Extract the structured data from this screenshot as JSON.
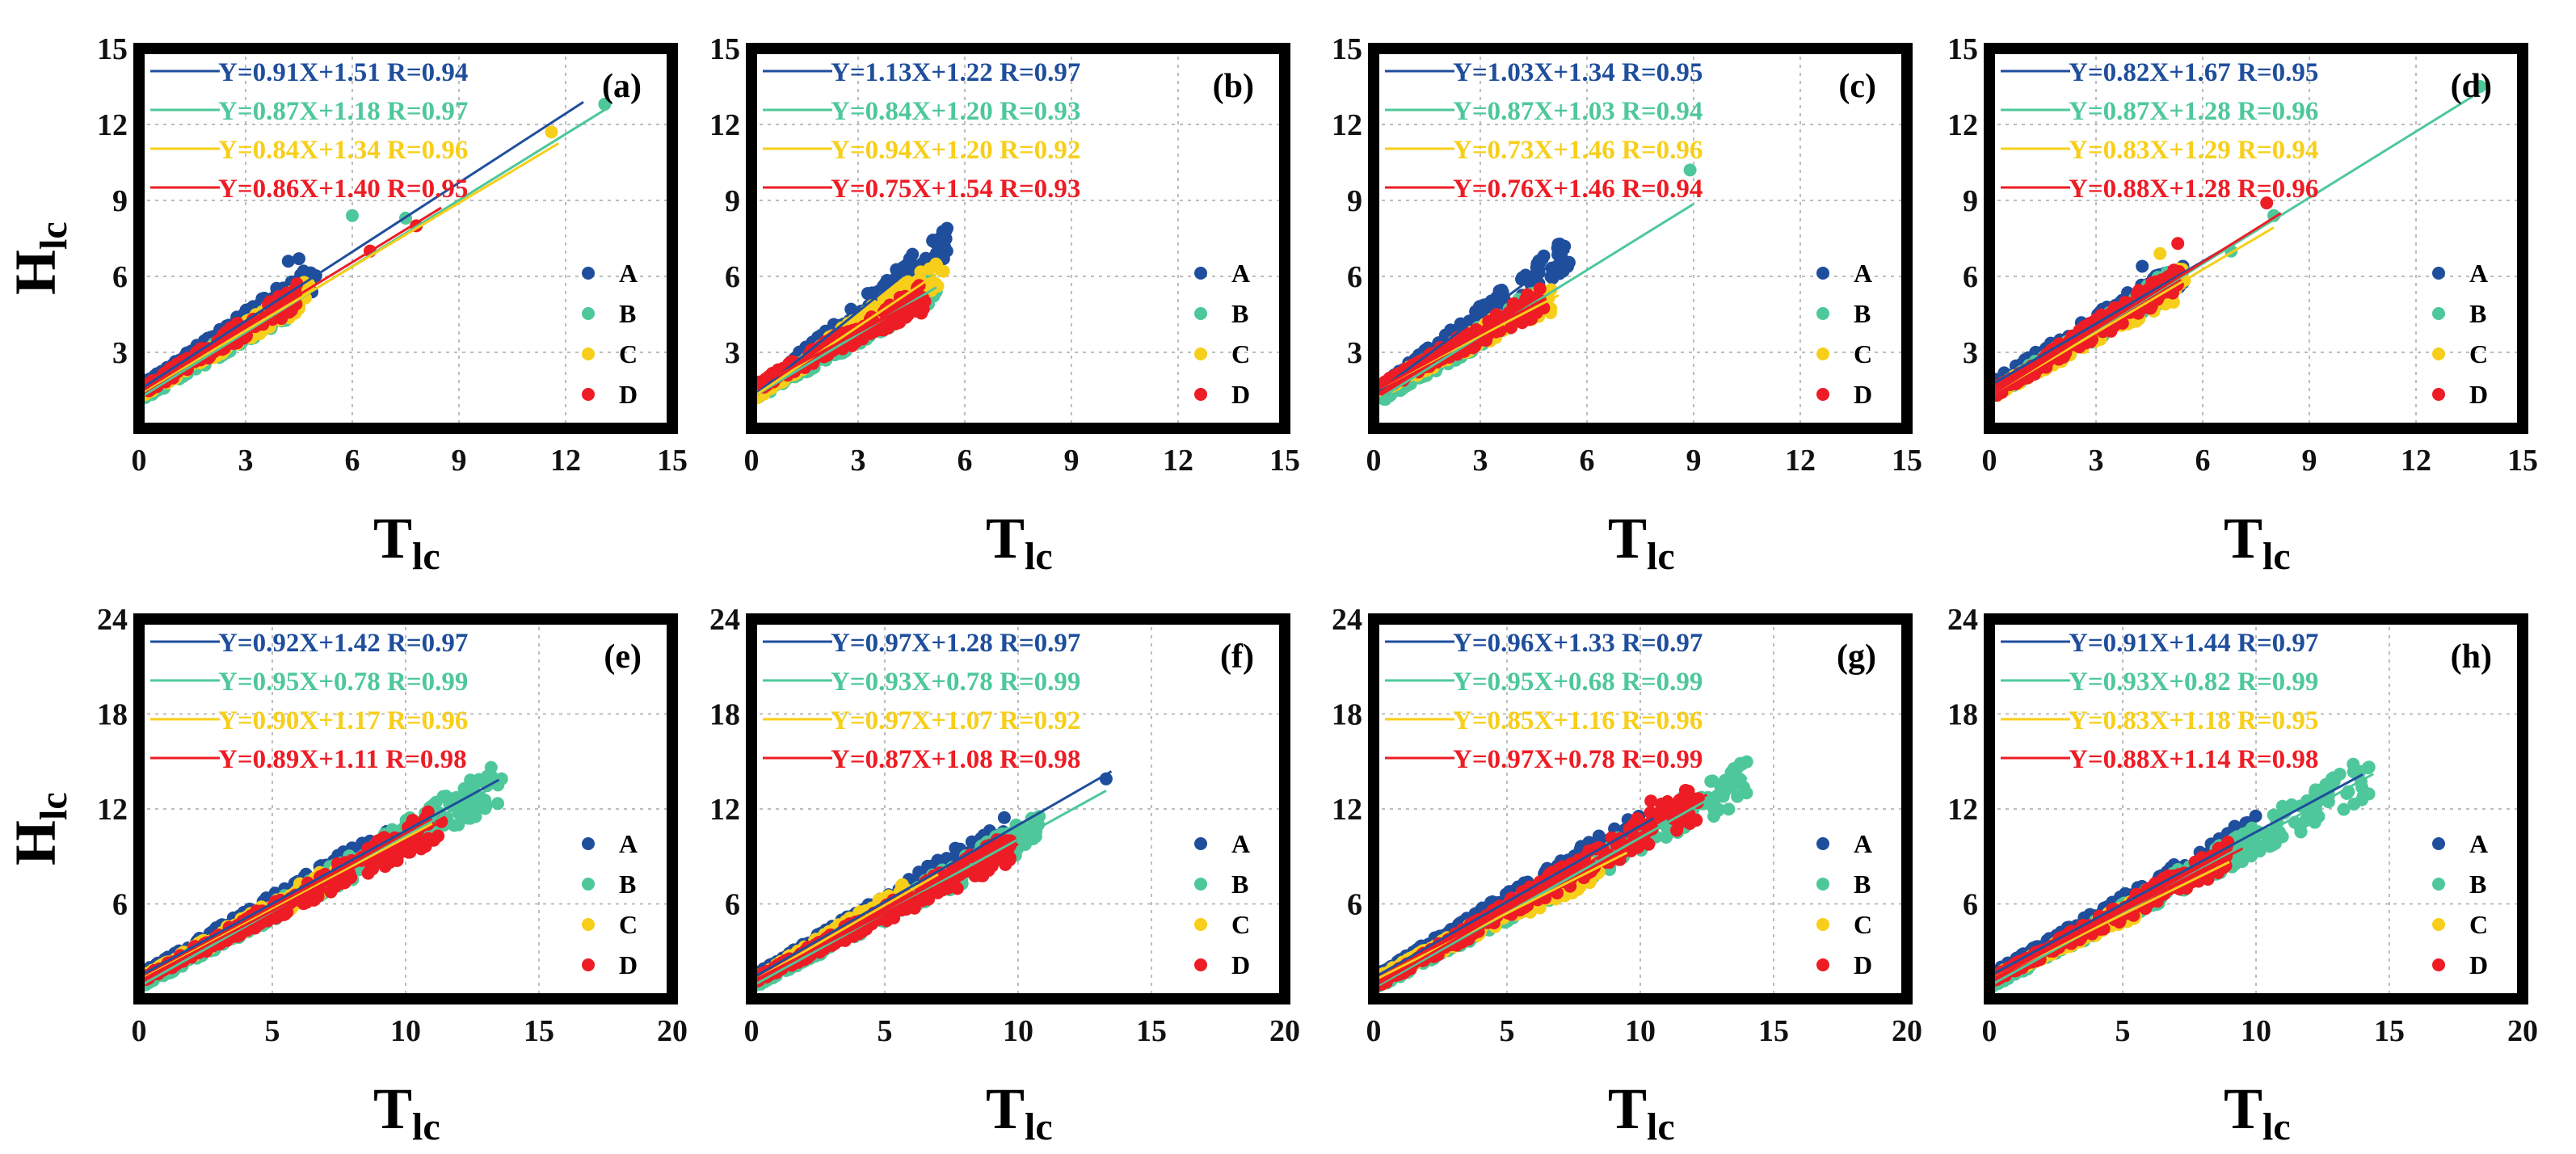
{
  "figure": {
    "x_label_main": "T",
    "x_label_sub": "lc",
    "y_label_main": "H",
    "y_label_sub": "lc"
  },
  "colors": {
    "A": "#1f4e9c",
    "B": "#4ec89a",
    "C": "#f7cf1a",
    "D": "#ee1c25"
  },
  "chart_data": [
    {
      "type": "scatter",
      "label": "(a)",
      "xlim": [
        0,
        15
      ],
      "ylim": [
        0,
        15
      ],
      "xticks": [
        "0",
        "3",
        "6",
        "9",
        "12",
        "15"
      ],
      "yticks": [
        "3",
        "6",
        "9",
        "12",
        "15"
      ],
      "show_y_label": true,
      "xlabel": "Tlc",
      "ylabel": "Hlc",
      "legend": [
        "A",
        "B",
        "C",
        "D"
      ],
      "series": [
        {
          "name": "A",
          "equation": "Y=0.91X+1.51 R=0.94",
          "slope": 0.91,
          "intercept": 1.51,
          "line_x": [
            0,
            12.5
          ],
          "point_xmax": 5,
          "extras": [
            [
              4.2,
              6.6
            ],
            [
              4.5,
              6.7
            ]
          ]
        },
        {
          "name": "B",
          "equation": "Y=0.87X+1.18 R=0.97",
          "slope": 0.87,
          "intercept": 1.18,
          "line_x": [
            0,
            13.2
          ],
          "point_xmax": 4.5,
          "extras": [
            [
              6.0,
              8.4
            ],
            [
              7.5,
              8.3
            ],
            [
              13.1,
              12.8
            ]
          ]
        },
        {
          "name": "C",
          "equation": "Y=0.84X+1.34 R=0.96",
          "slope": 0.84,
          "intercept": 1.34,
          "line_x": [
            0,
            11.8
          ],
          "point_xmax": 4.8,
          "extras": [
            [
              11.6,
              11.7
            ]
          ]
        },
        {
          "name": "D",
          "equation": "Y=0.86X+1.40 R=0.95",
          "slope": 0.86,
          "intercept": 1.4,
          "line_x": [
            0,
            8.5
          ],
          "point_xmax": 4.6,
          "extras": [
            [
              6.5,
              7.0
            ],
            [
              7.8,
              8.0
            ]
          ]
        }
      ]
    },
    {
      "type": "scatter",
      "label": "(b)",
      "xlim": [
        0,
        15
      ],
      "ylim": [
        0,
        15
      ],
      "xticks": [
        "0",
        "3",
        "6",
        "9",
        "12",
        "15"
      ],
      "yticks": [
        "3",
        "6",
        "9",
        "12",
        "15"
      ],
      "show_y_label": false,
      "xlabel": "Tlc",
      "ylabel": "",
      "legend": [
        "A",
        "B",
        "C",
        "D"
      ],
      "series": [
        {
          "name": "A",
          "equation": "Y=1.13X+1.22 R=0.97",
          "slope": 1.13,
          "intercept": 1.22,
          "line_x": [
            0,
            5.6
          ],
          "point_xmax": 5.5,
          "extras": [
            [
              5.5,
              7.9
            ]
          ]
        },
        {
          "name": "B",
          "equation": "Y=0.84X+1.20 R=0.93",
          "slope": 0.84,
          "intercept": 1.2,
          "line_x": [
            0,
            5.2
          ],
          "point_xmax": 5.2,
          "extras": [
            [
              5.2,
              5.4
            ]
          ]
        },
        {
          "name": "C",
          "equation": "Y=0.94X+1.20 R=0.92",
          "slope": 0.94,
          "intercept": 1.2,
          "line_x": [
            0,
            5.3
          ],
          "point_xmax": 5.3,
          "extras": [
            [
              5.4,
              6.2
            ]
          ]
        },
        {
          "name": "D",
          "equation": "Y=0.75X+1.54 R=0.93",
          "slope": 0.75,
          "intercept": 1.54,
          "line_x": [
            0,
            4.9
          ],
          "point_xmax": 4.9,
          "extras": []
        }
      ]
    },
    {
      "type": "scatter",
      "label": "(c)",
      "xlim": [
        0,
        15
      ],
      "ylim": [
        0,
        15
      ],
      "xticks": [
        "0",
        "3",
        "6",
        "9",
        "12",
        "15"
      ],
      "yticks": [
        "3",
        "6",
        "9",
        "12",
        "15"
      ],
      "show_y_label": false,
      "xlabel": "Tlc",
      "ylabel": "",
      "legend": [
        "A",
        "B",
        "C",
        "D"
      ],
      "series": [
        {
          "name": "A",
          "equation": "Y=1.03X+1.34 R=0.95",
          "slope": 1.03,
          "intercept": 1.34,
          "line_x": [
            0,
            5.5
          ],
          "point_xmax": 5.5,
          "extras": [
            [
              5.2,
              7.2
            ],
            [
              4.6,
              6.5
            ]
          ]
        },
        {
          "name": "B",
          "equation": "Y=0.87X+1.03 R=0.94",
          "slope": 0.87,
          "intercept": 1.03,
          "line_x": [
            0,
            9.0
          ],
          "point_xmax": 4.8,
          "extras": [
            [
              8.9,
              10.2
            ]
          ]
        },
        {
          "name": "C",
          "equation": "Y=0.73X+1.46 R=0.96",
          "slope": 0.73,
          "intercept": 1.46,
          "line_x": [
            0,
            5.2
          ],
          "point_xmax": 5.0,
          "extras": []
        },
        {
          "name": "D",
          "equation": "Y=0.76X+1.46 R=0.94",
          "slope": 0.76,
          "intercept": 1.46,
          "line_x": [
            0,
            4.8
          ],
          "point_xmax": 4.8,
          "extras": []
        }
      ]
    },
    {
      "type": "scatter",
      "label": "(d)",
      "xlim": [
        0,
        15
      ],
      "ylim": [
        0,
        15
      ],
      "xticks": [
        "0",
        "3",
        "6",
        "9",
        "12",
        "15"
      ],
      "yticks": [
        "3",
        "6",
        "9",
        "12",
        "15"
      ],
      "show_y_label": false,
      "xlabel": "Tlc",
      "ylabel": "",
      "legend": [
        "A",
        "B",
        "C",
        "D"
      ],
      "series": [
        {
          "name": "A",
          "equation": "Y=0.82X+1.67 R=0.95",
          "slope": 0.82,
          "intercept": 1.67,
          "line_x": [
            0,
            7.5
          ],
          "point_xmax": 5.5,
          "extras": [
            [
              4.3,
              6.4
            ]
          ]
        },
        {
          "name": "B",
          "equation": "Y=0.87X+1.28 R=0.96",
          "slope": 0.87,
          "intercept": 1.28,
          "line_x": [
            0,
            13.9
          ],
          "point_xmax": 5.0,
          "extras": [
            [
              6.8,
              7.0
            ],
            [
              8.0,
              8.4
            ],
            [
              13.8,
              13.5
            ]
          ]
        },
        {
          "name": "C",
          "equation": "Y=0.83X+1.29 R=0.94",
          "slope": 0.83,
          "intercept": 1.29,
          "line_x": [
            0,
            8.0
          ],
          "point_xmax": 5.5,
          "extras": [
            [
              4.8,
              6.9
            ]
          ]
        },
        {
          "name": "D",
          "equation": "Y=0.88X+1.28 R=0.96",
          "slope": 0.88,
          "intercept": 1.28,
          "line_x": [
            0,
            8.2
          ],
          "point_xmax": 5.4,
          "extras": [
            [
              5.3,
              7.3
            ],
            [
              7.8,
              8.9
            ]
          ]
        }
      ]
    },
    {
      "type": "scatter",
      "label": "(e)",
      "xlim": [
        0,
        20
      ],
      "ylim": [
        0,
        24
      ],
      "xticks": [
        "0",
        "5",
        "10",
        "15",
        "20"
      ],
      "yticks": [
        "6",
        "12",
        "18",
        "24"
      ],
      "show_y_label": true,
      "xlabel": "Tlc",
      "ylabel": "Hlc",
      "legend": [
        "A",
        "B",
        "C",
        "D"
      ],
      "series": [
        {
          "name": "A",
          "equation": "Y=0.92X+1.42 R=0.97",
          "slope": 0.92,
          "intercept": 1.42,
          "line_x": [
            0,
            13.5
          ],
          "point_xmax": 9.5,
          "extras": [
            [
              13.4,
              13.7
            ]
          ]
        },
        {
          "name": "B",
          "equation": "Y=0.95X+0.78 R=0.99",
          "slope": 0.95,
          "intercept": 0.78,
          "line_x": [
            0,
            13.7
          ],
          "point_xmax": 13.6,
          "extras": [
            [
              13.6,
              13.9
            ]
          ]
        },
        {
          "name": "C",
          "equation": "Y=0.90X+1.17 R=0.96",
          "slope": 0.9,
          "intercept": 1.17,
          "line_x": [
            0,
            11.0
          ],
          "point_xmax": 7.5,
          "extras": []
        },
        {
          "name": "D",
          "equation": "Y=0.89X+1.11 R=0.98",
          "slope": 0.89,
          "intercept": 1.11,
          "line_x": [
            0,
            11.5
          ],
          "point_xmax": 11.4,
          "extras": []
        }
      ]
    },
    {
      "type": "scatter",
      "label": "(f)",
      "xlim": [
        0,
        20
      ],
      "ylim": [
        0,
        24
      ],
      "xticks": [
        "0",
        "5",
        "10",
        "15",
        "20"
      ],
      "yticks": [
        "6",
        "12",
        "18",
        "24"
      ],
      "show_y_label": false,
      "xlabel": "Tlc",
      "ylabel": "",
      "legend": [
        "A",
        "B",
        "C",
        "D"
      ],
      "series": [
        {
          "name": "A",
          "equation": "Y=0.97X+1.28 R=0.97",
          "slope": 0.97,
          "intercept": 1.28,
          "line_x": [
            0,
            13.5
          ],
          "point_xmax": 9.5,
          "extras": [
            [
              13.3,
              13.9
            ]
          ]
        },
        {
          "name": "B",
          "equation": "Y=0.93X+0.78 R=0.99",
          "slope": 0.93,
          "intercept": 0.78,
          "line_x": [
            0,
            13.3
          ],
          "point_xmax": 10.8,
          "extras": []
        },
        {
          "name": "C",
          "equation": "Y=0.97X+1.07 R=0.92",
          "slope": 0.97,
          "intercept": 1.07,
          "line_x": [
            0,
            7.0
          ],
          "point_xmax": 5.8,
          "extras": []
        },
        {
          "name": "D",
          "equation": "Y=0.87X+1.08 R=0.98",
          "slope": 0.87,
          "intercept": 1.08,
          "line_x": [
            0,
            10.0
          ],
          "point_xmax": 9.8,
          "extras": []
        }
      ]
    },
    {
      "type": "scatter",
      "label": "(g)",
      "xlim": [
        0,
        20
      ],
      "ylim": [
        0,
        24
      ],
      "xticks": [
        "0",
        "5",
        "10",
        "15",
        "20"
      ],
      "yticks": [
        "6",
        "12",
        "18",
        "24"
      ],
      "show_y_label": false,
      "xlabel": "Tlc",
      "ylabel": "",
      "legend": [
        "A",
        "B",
        "C",
        "D"
      ],
      "series": [
        {
          "name": "A",
          "equation": "Y=0.96X+1.33 R=0.97",
          "slope": 0.96,
          "intercept": 1.33,
          "line_x": [
            0,
            10.5
          ],
          "point_xmax": 10.0,
          "extras": []
        },
        {
          "name": "B",
          "equation": "Y=0.95X+0.68 R=0.99",
          "slope": 0.95,
          "intercept": 0.68,
          "line_x": [
            0,
            14.0
          ],
          "point_xmax": 14.0,
          "extras": []
        },
        {
          "name": "C",
          "equation": "Y=0.85X+1.16 R=0.96",
          "slope": 0.85,
          "intercept": 1.16,
          "line_x": [
            0,
            9.5
          ],
          "point_xmax": 8.5,
          "extras": []
        },
        {
          "name": "D",
          "equation": "Y=0.97X+0.78 R=0.99",
          "slope": 0.97,
          "intercept": 0.78,
          "line_x": [
            0,
            12.5
          ],
          "point_xmax": 12.2,
          "extras": [
            [
              10.4,
              12.5
            ]
          ]
        }
      ]
    },
    {
      "type": "scatter",
      "label": "(h)",
      "xlim": [
        0,
        20
      ],
      "ylim": [
        0,
        24
      ],
      "xticks": [
        "0",
        "5",
        "10",
        "15",
        "20"
      ],
      "yticks": [
        "6",
        "12",
        "18",
        "24"
      ],
      "show_y_label": false,
      "xlabel": "Tlc",
      "ylabel": "",
      "legend": [
        "A",
        "B",
        "C",
        "D"
      ],
      "series": [
        {
          "name": "A",
          "equation": "Y=0.91X+1.44 R=0.97",
          "slope": 0.91,
          "intercept": 1.44,
          "line_x": [
            0,
            14.0
          ],
          "point_xmax": 10.0,
          "extras": [
            [
              9.2,
              10.9
            ]
          ]
        },
        {
          "name": "B",
          "equation": "Y=0.93X+0.82 R=0.99",
          "slope": 0.93,
          "intercept": 0.82,
          "line_x": [
            0,
            14.4
          ],
          "point_xmax": 14.3,
          "extras": [
            [
              14.2,
              14.6
            ]
          ]
        },
        {
          "name": "C",
          "equation": "Y=0.83X+1.18 R=0.95",
          "slope": 0.83,
          "intercept": 1.18,
          "line_x": [
            0,
            9.0
          ],
          "point_xmax": 5.5,
          "extras": []
        },
        {
          "name": "D",
          "equation": "Y=0.88X+1.14 R=0.98",
          "slope": 0.88,
          "intercept": 1.14,
          "line_x": [
            0,
            9.5
          ],
          "point_xmax": 9.0,
          "extras": []
        }
      ]
    }
  ]
}
